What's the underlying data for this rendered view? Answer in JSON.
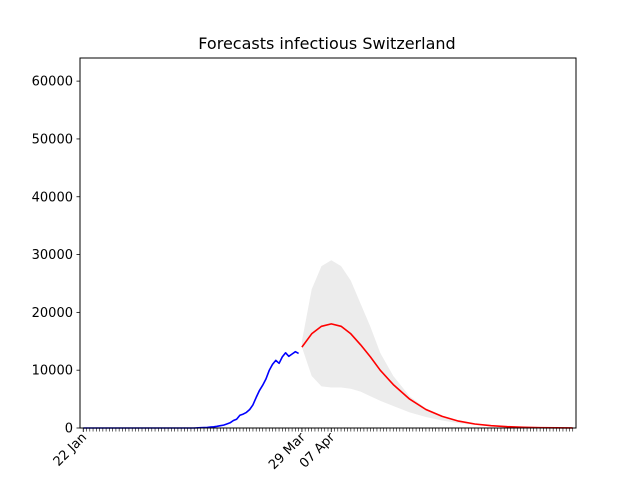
{
  "chart_data": {
    "type": "line",
    "title": "Forecasts infectious Switzerland",
    "xlabel": "",
    "ylabel": "",
    "ylim": [
      0,
      64000
    ],
    "y_ticks": [
      0,
      10000,
      20000,
      30000,
      40000,
      50000,
      60000
    ],
    "y_tick_labels": [
      "0",
      "10000",
      "20000",
      "30000",
      "40000",
      "50000",
      "60000"
    ],
    "x_range_days": [
      -1,
      151
    ],
    "x_tick_labels": [
      {
        "day": 0,
        "label": "22 Jan"
      },
      {
        "day": 67,
        "label": "29 Mar"
      },
      {
        "day": 76,
        "label": "07 Apr"
      }
    ],
    "series": [
      {
        "color": "#0000ff",
        "x": [
          0,
          5,
          10,
          15,
          20,
          25,
          30,
          34,
          36,
          38,
          39,
          40,
          41,
          42,
          43,
          44,
          45,
          46,
          47,
          48,
          49,
          50,
          51,
          52,
          53,
          54,
          55,
          56,
          57,
          58,
          59,
          60,
          61,
          62,
          63,
          64,
          65,
          66
        ],
        "y": [
          0,
          0,
          0,
          0,
          0,
          0,
          0,
          0,
          50,
          100,
          150,
          200,
          300,
          400,
          500,
          700,
          900,
          1300,
          1500,
          2200,
          2400,
          2700,
          3200,
          4000,
          5300,
          6500,
          7400,
          8500,
          10000,
          11000,
          11700,
          11200,
          12300,
          13000,
          12400,
          12800,
          13200,
          12900
        ]
      },
      {
        "color": "#ff0000",
        "x": [
          67,
          70,
          73,
          76,
          79,
          82,
          85,
          88,
          91,
          95,
          100,
          105,
          110,
          115,
          120,
          125,
          130,
          135,
          140,
          145,
          150
        ],
        "y": [
          14000,
          16300,
          17600,
          18000,
          17600,
          16300,
          14400,
          12300,
          10000,
          7500,
          5000,
          3200,
          2000,
          1200,
          700,
          400,
          220,
          120,
          60,
          30,
          20
        ]
      }
    ],
    "band": {
      "color": "#ececec",
      "x": [
        67,
        70,
        73,
        76,
        79,
        82,
        85,
        88,
        91,
        95,
        100,
        105,
        110,
        115,
        120,
        125,
        130,
        135,
        140,
        145,
        150
      ],
      "upper": [
        15000,
        24000,
        28000,
        29000,
        28000,
        25500,
        21500,
        17500,
        13000,
        9000,
        5500,
        3400,
        2100,
        1200,
        700,
        400,
        220,
        120,
        60,
        30,
        20
      ],
      "lower": [
        14000,
        9000,
        7200,
        7000,
        7000,
        6800,
        6300,
        5500,
        4700,
        3800,
        2700,
        1900,
        1300,
        850,
        520,
        320,
        180,
        100,
        50,
        25,
        15
      ]
    },
    "grid": false,
    "legend": "none"
  }
}
